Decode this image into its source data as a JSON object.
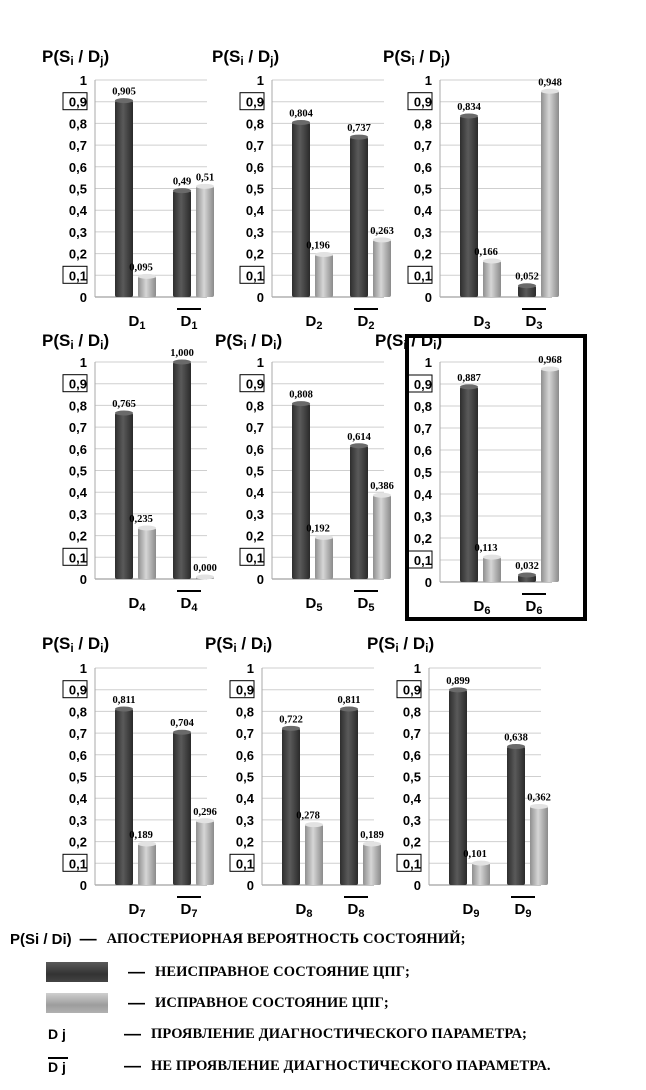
{
  "y_label_main": "P(S",
  "y_label_sub": "i",
  "y_label_sep": " / D",
  "y_label_j": "j",
  "y_label_close": ")",
  "y_label_i_variant": "i",
  "ticks": [
    "0",
    "0,1",
    "0,2",
    "0,3",
    "0,4",
    "0,5",
    "0,6",
    "0,7",
    "0,8",
    "0,9",
    "1"
  ],
  "tick_alt": [
    "0",
    "0,1",
    "0,2",
    "0,3",
    "0,4",
    "0,5",
    "0,6",
    "0,7",
    "0,8",
    "0,9",
    "1"
  ],
  "colors": {
    "faulty": "#3f3f3f",
    "serviceable": "#b3b3b3",
    "highlight_frame": "#000000"
  },
  "chart_data": [
    {
      "type": "bar",
      "label_sub": "1",
      "categories": [
        "D1",
        "D̄1"
      ],
      "series": [
        {
          "name": "НЕИСПРАВНОЕ СОСТОЯНИЕ ЦПГ",
          "values": [
            0.905,
            0.49
          ]
        },
        {
          "name": "ИСПРАВНОЕ СОСТОЯНИЕ ЦПГ",
          "values": [
            0.095,
            0.51
          ]
        }
      ],
      "labels": [
        [
          "0,905",
          "0,49"
        ],
        [
          "0,095",
          "0,51"
        ]
      ],
      "ylim": [
        0,
        1
      ]
    },
    {
      "type": "bar",
      "label_sub": "2",
      "categories": [
        "D2",
        "D̄2"
      ],
      "series": [
        {
          "name": "НЕИСПРАВНОЕ СОСТОЯНИЕ ЦПГ",
          "values": [
            0.804,
            0.737
          ]
        },
        {
          "name": "ИСПРАВНОЕ СОСТОЯНИЕ ЦПГ",
          "values": [
            0.196,
            0.263
          ]
        }
      ],
      "labels": [
        [
          "0,804",
          "0,737"
        ],
        [
          "0,196",
          "0,263"
        ]
      ],
      "ylim": [
        0,
        1
      ]
    },
    {
      "type": "bar",
      "label_sub": "3",
      "categories": [
        "D3",
        "D̄3"
      ],
      "series": [
        {
          "name": "НЕИСПРАВНОЕ СОСТОЯНИЕ ЦПГ",
          "values": [
            0.834,
            0.052
          ]
        },
        {
          "name": "ИСПРАВНОЕ СОСТОЯНИЕ ЦПГ",
          "values": [
            0.166,
            0.948
          ]
        }
      ],
      "labels": [
        [
          "0,834",
          "0,052"
        ],
        [
          "0,166",
          "0,948"
        ]
      ],
      "ylim": [
        0,
        1
      ]
    },
    {
      "type": "bar",
      "label_sub": "4",
      "categories": [
        "D4",
        "D̄4"
      ],
      "series": [
        {
          "name": "НЕИСПРАВНОЕ СОСТОЯНИЕ ЦПГ",
          "values": [
            0.765,
            1.0
          ]
        },
        {
          "name": "ИСПРАВНОЕ СОСТОЯНИЕ ЦПГ",
          "values": [
            0.235,
            0.0
          ]
        }
      ],
      "labels": [
        [
          "0,765",
          "1,000"
        ],
        [
          "0,235",
          "0,000"
        ]
      ],
      "ylim": [
        0,
        1
      ]
    },
    {
      "type": "bar",
      "label_sub": "5",
      "categories": [
        "D5",
        "D̄5"
      ],
      "series": [
        {
          "name": "НЕИСПРАВНОЕ СОСТОЯНИЕ ЦПГ",
          "values": [
            0.808,
            0.614
          ]
        },
        {
          "name": "ИСПРАВНОЕ СОСТОЯНИЕ ЦПГ",
          "values": [
            0.192,
            0.386
          ]
        }
      ],
      "labels": [
        [
          "0,808",
          "0,614"
        ],
        [
          "0,192",
          "0,386"
        ]
      ],
      "ylim": [
        0,
        1
      ]
    },
    {
      "type": "bar",
      "label_sub": "6",
      "categories": [
        "D6",
        "D̄6"
      ],
      "series": [
        {
          "name": "НЕИСПРАВНОЕ СОСТОЯНИЕ ЦПГ",
          "values": [
            0.887,
            0.032
          ]
        },
        {
          "name": "ИСПРАВНОЕ СОСТОЯНИЕ ЦПГ",
          "values": [
            0.113,
            0.968
          ]
        }
      ],
      "labels": [
        [
          "0,887",
          "0,032"
        ],
        [
          "0,113",
          "0,968"
        ]
      ],
      "ylim": [
        0,
        1
      ],
      "highlighted": true
    },
    {
      "type": "bar",
      "label_sub": "7",
      "categories": [
        "D7",
        "D̄7"
      ],
      "series": [
        {
          "name": "НЕИСПРАВНОЕ СОСТОЯНИЕ ЦПГ",
          "values": [
            0.811,
            0.704
          ]
        },
        {
          "name": "ИСПРАВНОЕ СОСТОЯНИЕ ЦПГ",
          "values": [
            0.189,
            0.296
          ]
        }
      ],
      "labels": [
        [
          "0,811",
          "0,704"
        ],
        [
          "0,189",
          "0,296"
        ]
      ],
      "ylim": [
        0,
        1
      ]
    },
    {
      "type": "bar",
      "label_sub": "8",
      "categories": [
        "D8",
        "D̄8"
      ],
      "series": [
        {
          "name": "НЕИСПРАВНОЕ СОСТОЯНИЕ ЦПГ",
          "values": [
            0.722,
            0.811
          ]
        },
        {
          "name": "ИСПРАВНОЕ СОСТОЯНИЕ ЦПГ",
          "values": [
            0.278,
            0.189
          ]
        }
      ],
      "labels": [
        [
          "0,722",
          "0,811"
        ],
        [
          "0,278",
          "0,189"
        ]
      ],
      "ylim": [
        0,
        1
      ]
    },
    {
      "type": "bar",
      "label_sub": "9",
      "categories": [
        "D9",
        "D̄9"
      ],
      "series": [
        {
          "name": "НЕИСПРАВНОЕ СОСТОЯНИЕ ЦПГ",
          "values": [
            0.899,
            0.638
          ]
        },
        {
          "name": "ИСПРАВНОЕ СОСТОЯНИЕ ЦПГ",
          "values": [
            0.101,
            0.362
          ]
        }
      ],
      "labels": [
        [
          "0,899",
          "0,638"
        ],
        [
          "0,101",
          "0,362"
        ]
      ],
      "ylim": [
        0,
        1
      ]
    }
  ],
  "legend": {
    "items": [
      {
        "symbol": "P(Si / Di)",
        "dash": "—",
        "text": "АПОСТЕРИОРНАЯ ВЕРОЯТНОСТЬ СОСТОЯНИЙ;"
      },
      {
        "symbol": "",
        "dash": "—",
        "text": "НЕИСПРАВНОЕ СОСТОЯНИЕ ЦПГ;"
      },
      {
        "symbol": "",
        "dash": "—",
        "text": "ИСПРАВНОЕ СОСТОЯНИЕ ЦПГ;"
      },
      {
        "symbol": "D j",
        "dash": "—",
        "text": "ПРОЯВЛЕНИЕ ДИАГНОСТИЧЕСКОГО ПАРАМЕТРА;"
      },
      {
        "symbol": "D j",
        "dash": "—",
        "text": "НЕ ПРОЯВЛЕНИЕ ДИАГНОСТИЧЕСКОГО ПАРАМЕТРА."
      }
    ]
  }
}
